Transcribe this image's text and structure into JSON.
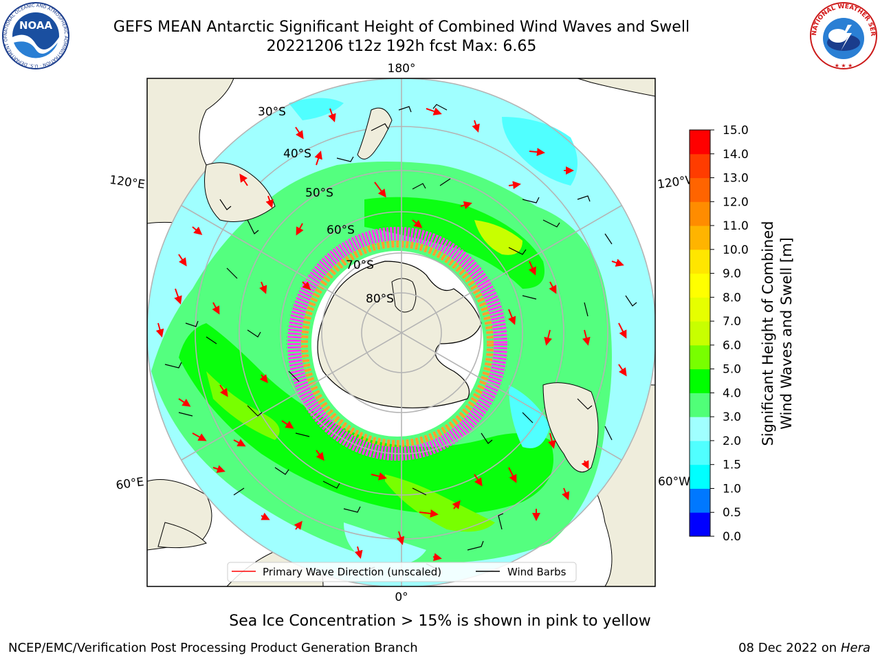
{
  "title": {
    "line1": "GEFS MEAN Antarctic Significant Height of Combined Wind Waves and Swell",
    "line2": "20221206 t12z 192h fcst   Max: 6.65"
  },
  "logos": {
    "left_text": "NOAA",
    "left_ring_text": "NATIONAL OCEANIC AND ATMOSPHERIC ADMINISTRATION · U.S. DEPARTMENT OF COMMERCE",
    "right_ring_text": "NATIONAL WEATHER SERVICE"
  },
  "map": {
    "longitude_labels": [
      "180°",
      "120°E",
      "120°W",
      "60°E",
      "60°W",
      "0°"
    ],
    "latitude_labels": [
      "30°S",
      "40°S",
      "50°S",
      "60°S",
      "70°S",
      "80°S"
    ],
    "legend": [
      "Primary Wave Direction (unscaled)",
      "Wind Barbs"
    ],
    "colors": {
      "land": "#efeddc",
      "ice_pink": "#ff3cf0",
      "ice_orange": "#ffa030",
      "primary_wave_direction": "#ff0000",
      "wind_barbs": "#000000",
      "grid": "#b4b4b4"
    }
  },
  "colorbar": {
    "label_line1": "Significant Height of Combined",
    "label_line2": "Wind Waves and Swell [m]",
    "ticks": [
      "0.0",
      "0.5",
      "1.0",
      "1.5",
      "2.0",
      "3.0",
      "4.0",
      "5.0",
      "6.0",
      "7.0",
      "8.0",
      "9.0",
      "10.0",
      "11.0",
      "12.0",
      "13.0",
      "14.0",
      "15.0"
    ],
    "colors": [
      "#0000ff",
      "#0078ff",
      "#00ffff",
      "#50ffff",
      "#a0ffff",
      "#50ff78",
      "#00ff00",
      "#78ff00",
      "#c8ff00",
      "#e6ff00",
      "#ffff00",
      "#ffe600",
      "#ffb400",
      "#ff8c00",
      "#ff6400",
      "#ff3c00",
      "#ff0000"
    ]
  },
  "caption": "Sea Ice Concentration > 15% is shown in pink to yellow",
  "footer": {
    "left": "NCEP/EMC/Verification Post Processing Product Generation Branch",
    "right_date": "08 Dec 2022 on",
    "right_machine": "Hera"
  }
}
